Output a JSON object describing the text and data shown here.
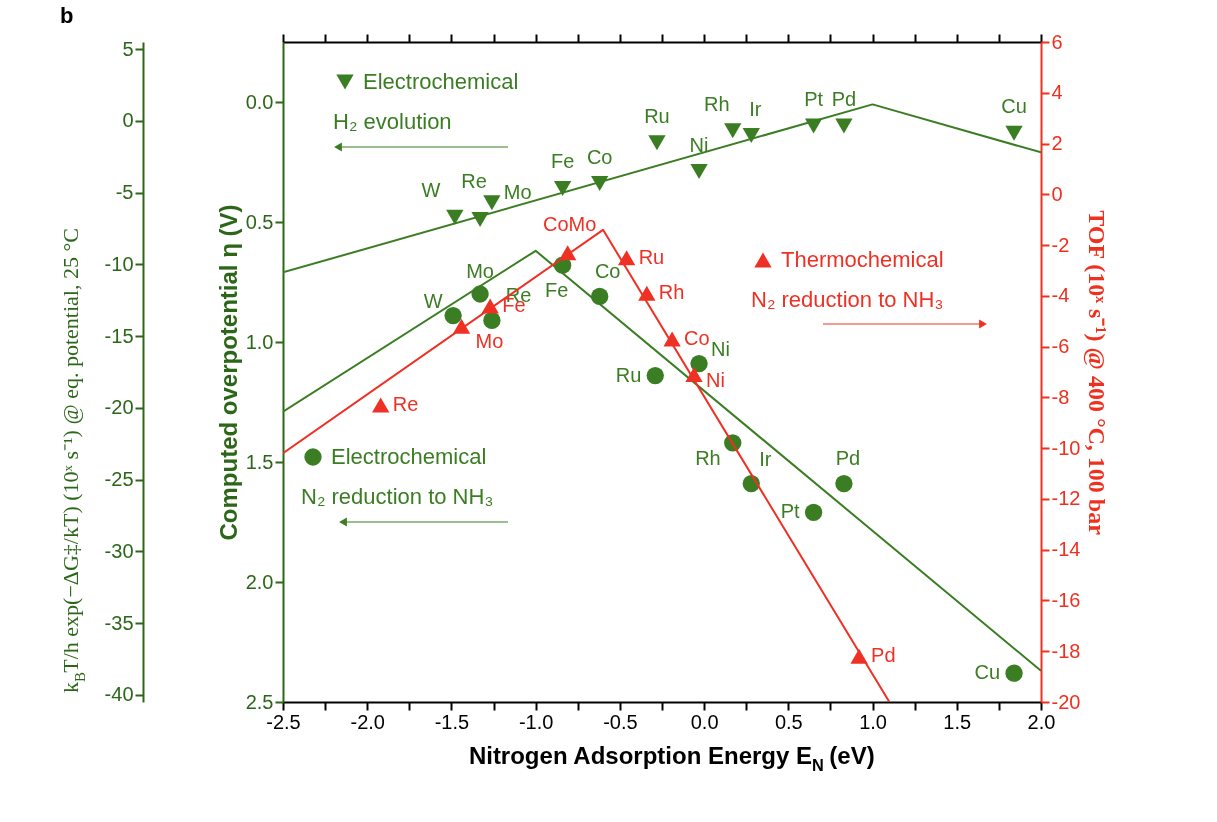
{
  "chart_data": {
    "type": "scatter",
    "title": "b",
    "xlabel": "Nitrogen Adsorption Energy E$_{N}$ (eV)",
    "ylabel": "Computed overpotential η (V)",
    "y2label": "TOF (10ˣ s⁻¹) @ 400 °C, 100 bar",
    "y3label": "k$_{B}$T/h exp(−ΔG‡/kT) (10ˣ s⁻¹) @ eq. potential, 25 °C",
    "legend": "top left",
    "xlim": [
      -2.5,
      2.0
    ],
    "xticks": [
      -2.5,
      {
        "value": -2.25,
        "label": null
      },
      {
        "value": -2,
        "label": "-2.0"
      },
      {
        "value": -1.75,
        "label": null
      },
      -1.5,
      {
        "value": -1.25,
        "label": null
      },
      {
        "value": -1,
        "label": "-1.0"
      },
      {
        "value": -0.75,
        "label": null
      },
      -0.5,
      {
        "value": -0.25,
        "label": null
      },
      {
        "value": 0,
        "label": "0.0"
      },
      {
        "value": 0.25,
        "label": null
      },
      0.5,
      {
        "value": 0.75,
        "label": null
      },
      {
        "value": 1,
        "label": "1.0"
      },
      {
        "value": 1.25,
        "label": null
      },
      1.5,
      {
        "value": 1.75,
        "label": null
      },
      {
        "value": 2,
        "label": "2.0"
      }
    ],
    "ylim": [
      2.5,
      -0.25
    ],
    "yticks": [
      {
        "value": 0,
        "label": "0.0"
      },
      0.5,
      {
        "value": 1,
        "label": "1.0"
      },
      1.5,
      {
        "value": 2,
        "label": "2.0"
      },
      2.5
    ],
    "y2lim": [
      -20,
      6
    ],
    "y2ticks": [
      -20,
      -18,
      -16,
      -14,
      -12,
      -10,
      -8,
      -6,
      -4,
      -2,
      0,
      2,
      4,
      6
    ],
    "y3lim": [
      -40.5,
      5.5
    ],
    "y3ticks": [
      -40,
      -35,
      -30,
      -25,
      -20,
      -15,
      -10,
      -5,
      0,
      5
    ],
    "series": [
      {
        "type": "line",
        "axis": "y",
        "color": "#3a7d22",
        "marker": "none",
        "x": [
          -2.5,
          1.0,
          2.0
        ],
        "values": [
          0.71,
          0.01,
          0.21
        ]
      },
      {
        "type": "line",
        "axis": "y",
        "color": "#3a7d22",
        "marker": "none",
        "x": [
          -2.5,
          -1.0,
          2.0
        ],
        "values": [
          1.29,
          0.62,
          2.37
        ]
      },
      {
        "type": "line",
        "axis": "y2",
        "color": "#ee3124",
        "marker": "none",
        "x": [
          -2.5,
          -0.6,
          1.1
        ],
        "values": [
          -10.2,
          -1.4,
          -20
        ]
      },
      {
        "axis": "y",
        "name": "Electrochemical H₂ evolution",
        "color": "#3a7d22",
        "marker": "triangle-down",
        "x": [
          -1.48,
          -1.33,
          -1.26,
          -0.84,
          -0.62,
          -0.28,
          -0.03,
          0.17,
          0.28,
          0.65,
          0.83,
          1.84
        ],
        "values": [
          0.48,
          0.49,
          0.42,
          0.36,
          0.34,
          0.17,
          0.29,
          0.12,
          0.14,
          0.1,
          0.1,
          0.13
        ],
        "value_labels": [
          "W",
          "Re",
          "Mo",
          "Fe",
          "Co",
          "Ru",
          "Ni",
          "Rh",
          "Ir",
          "Pt",
          "Pd",
          "Cu"
        ]
      },
      {
        "axis": "y",
        "name": "Electrochemical N₂ reduction to NH₃",
        "color": "#3a7d22",
        "marker": "circle",
        "x": [
          -1.49,
          -1.33,
          -1.26,
          -0.84,
          -0.62,
          -0.29,
          -0.03,
          0.17,
          0.28,
          0.65,
          0.83,
          1.84
        ],
        "values": [
          0.89,
          0.8,
          0.91,
          0.68,
          0.81,
          1.14,
          1.09,
          1.42,
          1.59,
          1.71,
          1.59,
          2.38
        ],
        "value_labels": [
          "W",
          "Mo",
          "Re",
          "Fe",
          "Co",
          "Ru",
          "Ni",
          "Rh",
          "Ir",
          "Pt",
          "Pd",
          "Cu"
        ]
      },
      {
        "axis": "y2",
        "name": "Thermochemical N₂ reduction to NH₃",
        "color": "#ee3124",
        "marker": "triangle",
        "x": [
          -1.92,
          -1.44,
          -1.27,
          -0.81,
          -0.46,
          -0.34,
          -0.19,
          -0.06,
          0.92
        ],
        "values": [
          -8.3,
          -5.2,
          -4.4,
          -2.3,
          -2.5,
          -3.9,
          -5.7,
          -7.1,
          -18.2
        ],
        "value_labels": [
          "Re",
          "Mo",
          "Fe",
          "CoMo",
          "Ru",
          "Rh",
          "Co",
          "Ni",
          "Pd"
        ]
      }
    ]
  }
}
